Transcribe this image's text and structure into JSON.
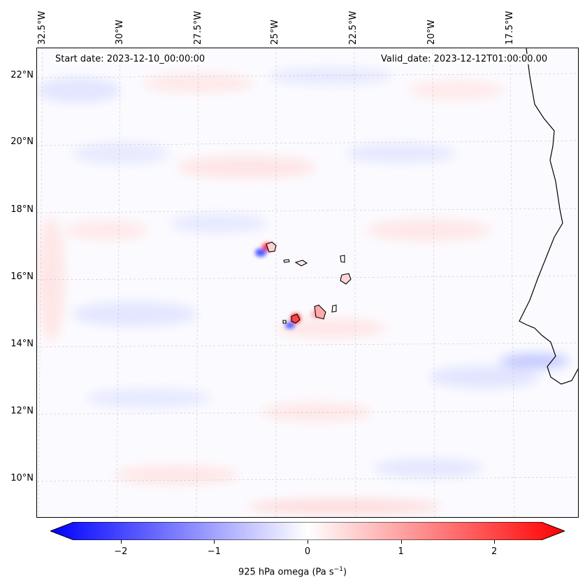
{
  "map": {
    "start_date": "Start date: 2023-12-10_00:00:00",
    "valid_date": "Valid_date: 2023-12-12T01:00:00.00",
    "lat_labels": [
      "22°N",
      "20°N",
      "18°N",
      "16°N",
      "14°N",
      "12°N",
      "10°N"
    ],
    "lon_labels": [
      "32.5°W",
      "30°W",
      "27.5°W",
      "25°W",
      "22.5°W",
      "20°W",
      "17.5°W"
    ]
  },
  "colorbar": {
    "label": "925 hPa omega (Pa s",
    "label_sup": "−1",
    "label_close": ")",
    "ticks": [
      "−2",
      "−1",
      "0",
      "1",
      "2"
    ],
    "tick_values": [
      -2,
      -1,
      0,
      1,
      2
    ],
    "range": [
      -2.5,
      2.5
    ],
    "colormap": "bwr",
    "low_color": "#0000ff",
    "mid_color": "#ffffff",
    "high_color": "#ff0000",
    "extend": "both"
  }
}
